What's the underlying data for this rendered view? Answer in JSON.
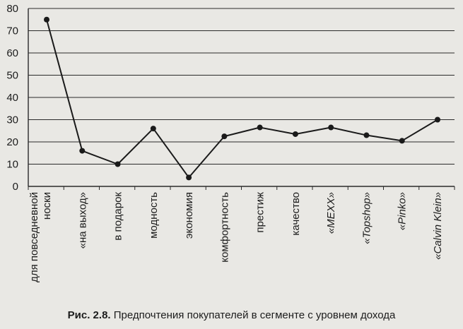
{
  "caption": {
    "label": "Рис. 2.8.",
    "text": "Предпочтения покупателей в сегменте с уровнем дохода"
  },
  "colors": {
    "line": "#1a1a1a",
    "grid": "#2a2a2a",
    "background": "#e9e8e4"
  },
  "chart_data": {
    "type": "line",
    "categories": [
      "для повседневной носки",
      "«на выход»",
      "в подарок",
      "модность",
      "экономия",
      "комфортность",
      "престиж",
      "качество",
      "«MEXX»",
      "«Topshop»",
      "«Pinko»",
      "«Calvin Klein»"
    ],
    "italic_categories": [
      "«MEXX»",
      "«Topshop»",
      "«Pinko»",
      "«Calvin Klein»"
    ],
    "series": [
      {
        "values": [
          75,
          16,
          10,
          26,
          4,
          22.5,
          26.5,
          23.5,
          26.5,
          23,
          20.5,
          30
        ]
      }
    ],
    "yticks": [
      "0",
      "10",
      "20",
      "30",
      "40",
      "50",
      "60",
      "70",
      "80"
    ],
    "ylim": [
      0,
      80
    ],
    "grid": true,
    "legend": "none"
  }
}
